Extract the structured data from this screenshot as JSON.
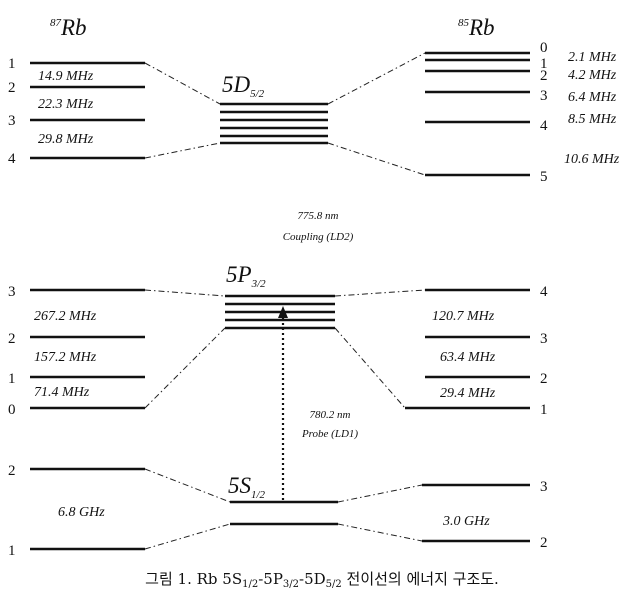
{
  "isotopes": {
    "rb87": "87",
    "rb85": "85",
    "element": "Rb"
  },
  "states": {
    "d_prefix": "5D",
    "d_sub": "5/2",
    "p_prefix": "5P",
    "p_sub": "3/2",
    "s_prefix": "5S",
    "s_sub": "1/2"
  },
  "rb87_5d": {
    "levels": [
      "1",
      "2",
      "3",
      "4"
    ],
    "splittings": [
      "14.9 MHz",
      "22.3 MHz",
      "29.8 MHz"
    ]
  },
  "rb85_5d": {
    "levels": [
      "0",
      "1",
      "2",
      "3",
      "4",
      "5"
    ],
    "splittings": [
      "2.1 MHz",
      "4.2 MHz",
      "6.4 MHz",
      "8.5 MHz",
      "10.6 MHz"
    ]
  },
  "coupling": {
    "wavelength": "775.8 nm",
    "label": "Coupling (LD2)"
  },
  "rb87_5p": {
    "levels": [
      "3",
      "2",
      "1",
      "0"
    ],
    "splittings": [
      "267.2 MHz",
      "157.2 MHz",
      "71.4  MHz"
    ]
  },
  "rb85_5p": {
    "levels": [
      "4",
      "3",
      "2",
      "1"
    ],
    "splittings": [
      "120.7 MHz",
      "63.4 MHz",
      "29.4 MHz"
    ]
  },
  "probe": {
    "wavelength": "780.2 nm",
    "label": "Probe (LD1)"
  },
  "rb87_5s": {
    "levels": [
      "2",
      "1"
    ],
    "splitting": "6.8 GHz"
  },
  "rb85_5s": {
    "levels": [
      "3",
      "2"
    ],
    "splitting": "3.0 GHz"
  },
  "caption": {
    "prefix": "그림 1. Rb 5S",
    "s_sub": "1/2",
    "p_pre": "-5P",
    "p_sub": "3/2",
    "d_pre": "-5D",
    "d_sub": "5/2",
    "suffix": " 전이선의 에너지 구조도."
  }
}
